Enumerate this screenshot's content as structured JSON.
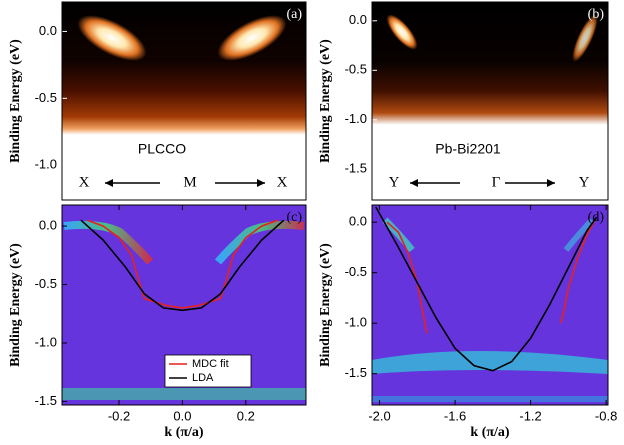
{
  "chart_data": [
    {
      "type": "image",
      "panel_label": "(a)",
      "ylabel": "Binding Energy (eV)",
      "ylim": [
        -1.26,
        0.22
      ],
      "yticks": [
        {
          "value": 0,
          "label": "0.0"
        },
        -0.5,
        {
          "value": -1,
          "label": "-1.0"
        }
      ],
      "sample": "PLCCO",
      "direction_labels": [
        "X",
        "M",
        "X"
      ]
    },
    {
      "type": "image",
      "panel_label": "(b)",
      "ylabel": "Binding Energy (eV)",
      "ylim": [
        -1.81,
        0.19
      ],
      "yticks": [
        {
          "value": 0,
          "label": "0.0"
        },
        -0.5,
        {
          "value": -1,
          "label": "-1.0"
        },
        -1.5
      ],
      "sample": "Pb-Bi2201",
      "direction_labels": [
        "Y",
        "Γ",
        "Y"
      ]
    },
    {
      "type": "line",
      "panel_label": "(c)",
      "ylabel": "Binding Energy (eV)",
      "xlabel": "k (π/a)",
      "xlim": [
        -0.38,
        0.39
      ],
      "xticks": [
        -0.2,
        {
          "value": 0,
          "label": "0.0"
        },
        0.2
      ],
      "ylim": [
        -1.53,
        0.18
      ],
      "yticks": [
        {
          "value": 0,
          "label": "0.0"
        },
        -0.5,
        {
          "value": -1,
          "label": "-1.0"
        },
        -1.5
      ],
      "legend": "lower center",
      "series": [
        {
          "name": "MDC fit",
          "color": "#e8211c",
          "x": [
            -0.3,
            -0.25,
            -0.2,
            -0.16,
            -0.14,
            -0.12,
            -0.05,
            0,
            0.05,
            0.12,
            0.14,
            0.16,
            0.2,
            0.25,
            0.3
          ],
          "values": [
            0.05,
            0.0,
            -0.1,
            -0.25,
            -0.45,
            -0.62,
            -0.68,
            -0.7,
            -0.68,
            -0.62,
            -0.45,
            -0.25,
            -0.1,
            0.0,
            0.05
          ]
        },
        {
          "name": "LDA",
          "color": "#000000",
          "x": [
            -0.32,
            -0.25,
            -0.18,
            -0.12,
            -0.06,
            0,
            0.06,
            0.12,
            0.18,
            0.25,
            0.32
          ],
          "values": [
            0.05,
            -0.12,
            -0.35,
            -0.58,
            -0.7,
            -0.72,
            -0.7,
            -0.58,
            -0.35,
            -0.12,
            0.05
          ]
        }
      ]
    },
    {
      "type": "line",
      "panel_label": "(d)",
      "ylabel": "Binding Energy (eV)",
      "xlabel": "k (π/a)",
      "xlim": [
        -2.04,
        -0.79
      ],
      "xticks": [
        {
          "value": -2,
          "label": "-2.0"
        },
        -1.6,
        -1.2,
        -0.8
      ],
      "ylim": [
        -1.81,
        0.17
      ],
      "yticks": [
        {
          "value": 0,
          "label": "0.0"
        },
        -0.5,
        {
          "value": -1,
          "label": "-1.0"
        },
        -1.5
      ],
      "series": [
        {
          "color": "#e8211c",
          "x": [
            -1.96,
            -1.9,
            -1.85,
            -1.8,
            -1.77,
            -1.75,
            -1.4,
            -0.86,
            -0.9,
            -0.95,
            -1.0,
            -1.02,
            -1.04
          ],
          "values": [
            0.0,
            -0.1,
            -0.3,
            -0.6,
            -0.9,
            -1.1,
            null,
            0.02,
            -0.12,
            -0.35,
            -0.65,
            -0.85,
            -1.0
          ]
        },
        {
          "color": "#000000",
          "x": [
            -2.02,
            -1.9,
            -1.8,
            -1.7,
            -1.6,
            -1.5,
            -1.4,
            -1.3,
            -1.2,
            -1.1,
            -1.0,
            -0.9,
            -0.85
          ],
          "values": [
            0.15,
            -0.25,
            -0.6,
            -0.95,
            -1.25,
            -1.42,
            -1.47,
            -1.38,
            -1.15,
            -0.82,
            -0.45,
            -0.08,
            0.05
          ]
        }
      ]
    }
  ]
}
